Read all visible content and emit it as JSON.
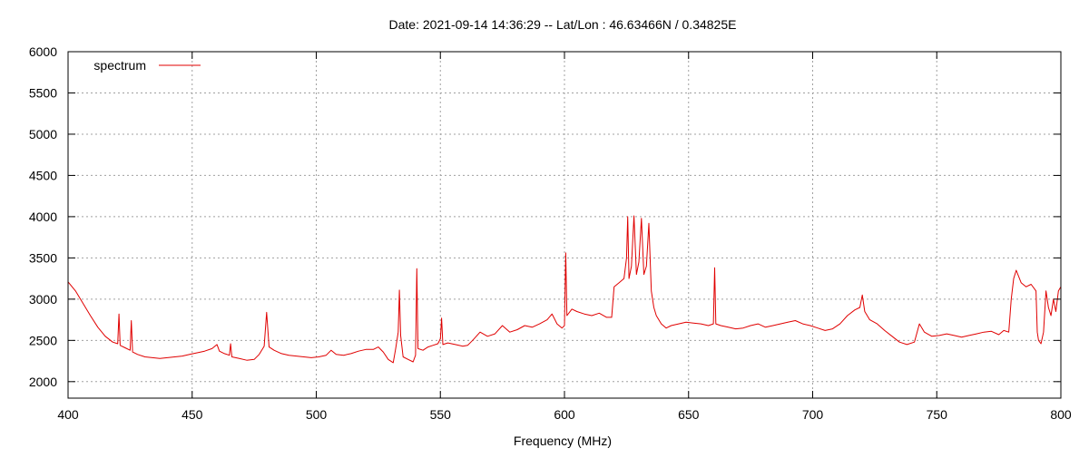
{
  "chart_data": {
    "type": "line",
    "title": "Date: 2021-09-14 14:36:29  --  Lat/Lon : 46.63466N / 0.34825E",
    "xlabel": "Frequency (MHz)",
    "ylabel": "",
    "xlim": [
      400,
      800
    ],
    "ylim": [
      1800,
      6000
    ],
    "x_ticks": [
      400,
      450,
      500,
      550,
      600,
      650,
      700,
      750,
      800
    ],
    "y_ticks": [
      2000,
      2500,
      3000,
      3500,
      4000,
      4500,
      5000,
      5500,
      6000
    ],
    "grid": true,
    "legend_position": "top-left",
    "series": [
      {
        "name": "spectrum",
        "color": "#e00000",
        "points": [
          [
            400,
            3210
          ],
          [
            403,
            3100
          ],
          [
            406,
            2950
          ],
          [
            409,
            2800
          ],
          [
            412,
            2660
          ],
          [
            415,
            2550
          ],
          [
            418,
            2480
          ],
          [
            420,
            2460
          ],
          [
            420.5,
            2820
          ],
          [
            421,
            2440
          ],
          [
            423,
            2410
          ],
          [
            425,
            2380
          ],
          [
            425.5,
            2740
          ],
          [
            426,
            2360
          ],
          [
            428,
            2330
          ],
          [
            431,
            2300
          ],
          [
            434,
            2290
          ],
          [
            437,
            2280
          ],
          [
            440,
            2290
          ],
          [
            443,
            2300
          ],
          [
            446,
            2310
          ],
          [
            449,
            2330
          ],
          [
            452,
            2350
          ],
          [
            455,
            2370
          ],
          [
            458,
            2400
          ],
          [
            460,
            2450
          ],
          [
            461,
            2370
          ],
          [
            463,
            2340
          ],
          [
            465,
            2320
          ],
          [
            465.5,
            2460
          ],
          [
            466,
            2300
          ],
          [
            469,
            2280
          ],
          [
            472,
            2260
          ],
          [
            475,
            2270
          ],
          [
            477,
            2330
          ],
          [
            479,
            2430
          ],
          [
            480,
            2840
          ],
          [
            481,
            2420
          ],
          [
            483,
            2380
          ],
          [
            486,
            2340
          ],
          [
            489,
            2320
          ],
          [
            492,
            2310
          ],
          [
            495,
            2300
          ],
          [
            498,
            2290
          ],
          [
            501,
            2300
          ],
          [
            504,
            2320
          ],
          [
            506,
            2380
          ],
          [
            508,
            2330
          ],
          [
            511,
            2320
          ],
          [
            514,
            2340
          ],
          [
            517,
            2370
          ],
          [
            520,
            2390
          ],
          [
            523,
            2390
          ],
          [
            525,
            2420
          ],
          [
            527,
            2360
          ],
          [
            529,
            2270
          ],
          [
            531,
            2230
          ],
          [
            532,
            2400
          ],
          [
            533,
            2600
          ],
          [
            533.5,
            3110
          ],
          [
            534,
            2560
          ],
          [
            535,
            2300
          ],
          [
            537,
            2270
          ],
          [
            539,
            2240
          ],
          [
            540,
            2320
          ],
          [
            540.5,
            3370
          ],
          [
            541,
            2400
          ],
          [
            543,
            2380
          ],
          [
            545,
            2420
          ],
          [
            547,
            2440
          ],
          [
            549,
            2460
          ],
          [
            550,
            2520
          ],
          [
            550.5,
            2770
          ],
          [
            551,
            2450
          ],
          [
            553,
            2470
          ],
          [
            556,
            2450
          ],
          [
            559,
            2430
          ],
          [
            561,
            2440
          ],
          [
            563,
            2500
          ],
          [
            566,
            2600
          ],
          [
            569,
            2550
          ],
          [
            572,
            2580
          ],
          [
            575,
            2680
          ],
          [
            578,
            2600
          ],
          [
            581,
            2630
          ],
          [
            584,
            2680
          ],
          [
            587,
            2660
          ],
          [
            590,
            2700
          ],
          [
            593,
            2750
          ],
          [
            595,
            2820
          ],
          [
            597,
            2700
          ],
          [
            599,
            2650
          ],
          [
            600,
            2680
          ],
          [
            600.5,
            3560
          ],
          [
            601,
            2800
          ],
          [
            603,
            2880
          ],
          [
            605,
            2850
          ],
          [
            608,
            2820
          ],
          [
            611,
            2800
          ],
          [
            614,
            2830
          ],
          [
            617,
            2780
          ],
          [
            619,
            2780
          ],
          [
            620,
            3150
          ],
          [
            622,
            3200
          ],
          [
            624,
            3250
          ],
          [
            625,
            3500
          ],
          [
            625.5,
            4000
          ],
          [
            626,
            3250
          ],
          [
            627,
            3400
          ],
          [
            628,
            4010
          ],
          [
            629,
            3300
          ],
          [
            630,
            3450
          ],
          [
            631,
            3980
          ],
          [
            632,
            3300
          ],
          [
            633,
            3400
          ],
          [
            634,
            3920
          ],
          [
            635,
            3100
          ],
          [
            636,
            2900
          ],
          [
            637,
            2800
          ],
          [
            639,
            2700
          ],
          [
            641,
            2650
          ],
          [
            643,
            2680
          ],
          [
            646,
            2700
          ],
          [
            649,
            2720
          ],
          [
            652,
            2710
          ],
          [
            655,
            2700
          ],
          [
            658,
            2680
          ],
          [
            660,
            2700
          ],
          [
            660.5,
            3380
          ],
          [
            661,
            2700
          ],
          [
            663,
            2680
          ],
          [
            666,
            2660
          ],
          [
            669,
            2640
          ],
          [
            672,
            2650
          ],
          [
            675,
            2680
          ],
          [
            678,
            2700
          ],
          [
            681,
            2660
          ],
          [
            684,
            2680
          ],
          [
            687,
            2700
          ],
          [
            690,
            2720
          ],
          [
            693,
            2740
          ],
          [
            696,
            2700
          ],
          [
            699,
            2680
          ],
          [
            702,
            2650
          ],
          [
            705,
            2620
          ],
          [
            708,
            2640
          ],
          [
            711,
            2700
          ],
          [
            714,
            2800
          ],
          [
            717,
            2870
          ],
          [
            719,
            2900
          ],
          [
            720,
            3050
          ],
          [
            721,
            2850
          ],
          [
            723,
            2750
          ],
          [
            726,
            2700
          ],
          [
            729,
            2620
          ],
          [
            732,
            2550
          ],
          [
            735,
            2480
          ],
          [
            738,
            2450
          ],
          [
            741,
            2480
          ],
          [
            743,
            2700
          ],
          [
            745,
            2600
          ],
          [
            748,
            2550
          ],
          [
            751,
            2560
          ],
          [
            754,
            2580
          ],
          [
            757,
            2560
          ],
          [
            760,
            2540
          ],
          [
            763,
            2560
          ],
          [
            766,
            2580
          ],
          [
            769,
            2600
          ],
          [
            772,
            2610
          ],
          [
            775,
            2570
          ],
          [
            777,
            2620
          ],
          [
            779,
            2600
          ],
          [
            780,
            3000
          ],
          [
            781,
            3250
          ],
          [
            782,
            3350
          ],
          [
            784,
            3200
          ],
          [
            786,
            3150
          ],
          [
            788,
            3180
          ],
          [
            790,
            3100
          ],
          [
            790.5,
            2600
          ],
          [
            791,
            2500
          ],
          [
            792,
            2460
          ],
          [
            793,
            2600
          ],
          [
            794,
            3100
          ],
          [
            795,
            2900
          ],
          [
            796,
            2800
          ],
          [
            797,
            3000
          ],
          [
            798,
            2850
          ],
          [
            799,
            3100
          ],
          [
            800,
            3150
          ]
        ]
      }
    ]
  }
}
